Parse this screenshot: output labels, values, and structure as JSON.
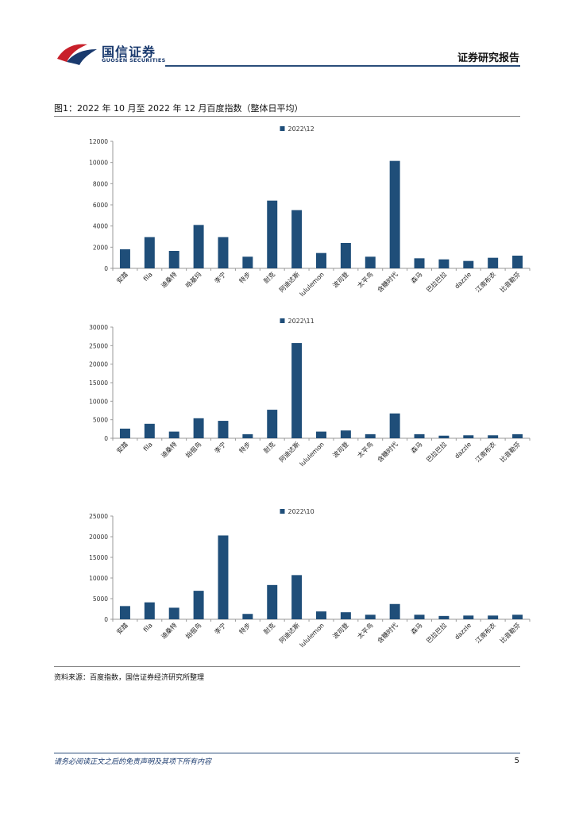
{
  "header": {
    "company_cn": "国信证券",
    "company_en": "GUOSEN SECURITIES",
    "report_type": "证券研究报告"
  },
  "figure": {
    "title": "图1：2022 年 10 月至 2022 年 12 月百度指数（整体日平均）",
    "source": "资料来源：百度指数，国信证券经济研究所整理"
  },
  "footer": {
    "disclaimer": "请务必阅读正文之后的免责声明及其项下所有内容",
    "page_number": "5"
  },
  "colors": {
    "bar": "#1f4e79",
    "axis": "#999999"
  },
  "chart_data": [
    {
      "type": "bar",
      "legend": "2022\\12",
      "categories": [
        "安踏",
        "fila",
        "迪桑特",
        "哈基玛",
        "李宁",
        "特步",
        "耐克",
        "阿迪达斯",
        "lululemon",
        "波司登",
        "太平鸟",
        "含糖时代",
        "森马",
        "巴拉巴拉",
        "dazzle",
        "江南布衣",
        "比音勒芬"
      ],
      "values": [
        1800,
        2950,
        1650,
        4100,
        2950,
        1100,
        6400,
        5500,
        1450,
        2400,
        1100,
        10150,
        950,
        850,
        700,
        1000,
        1200
      ],
      "ylim": [
        0,
        12000
      ],
      "yticks": [
        0,
        2000,
        4000,
        6000,
        8000,
        10000,
        12000
      ],
      "xlabel": "",
      "ylabel": ""
    },
    {
      "type": "bar",
      "legend": "2022\\11",
      "categories": [
        "安踏",
        "fila",
        "迪桑特",
        "始祖鸟",
        "李宁",
        "特步",
        "耐克",
        "阿迪达斯",
        "lululemon",
        "波司登",
        "太平鸟",
        "含糖时代",
        "森马",
        "巴拉巴拉",
        "dazzle",
        "江南布衣",
        "比音勒芬"
      ],
      "values": [
        2600,
        3900,
        1800,
        5400,
        4700,
        1100,
        7700,
        25700,
        1800,
        2100,
        1100,
        6700,
        1100,
        700,
        800,
        800,
        1100
      ],
      "ylim": [
        0,
        30000
      ],
      "yticks": [
        0,
        5000,
        10000,
        15000,
        20000,
        25000,
        30000
      ],
      "xlabel": "",
      "ylabel": ""
    },
    {
      "type": "bar",
      "legend": "2022\\10",
      "categories": [
        "安踏",
        "fila",
        "迪桑特",
        "始祖鸟",
        "李宁",
        "特步",
        "耐克",
        "阿迪达斯",
        "lululemon",
        "波司登",
        "太平鸟",
        "含糖时代",
        "森马",
        "巴拉巴拉",
        "dazzle",
        "江南布衣",
        "比音勒芬"
      ],
      "values": [
        3200,
        4100,
        2800,
        6900,
        20300,
        1300,
        8300,
        10700,
        1900,
        1700,
        1100,
        3700,
        1100,
        800,
        900,
        900,
        1100
      ],
      "ylim": [
        0,
        25000
      ],
      "yticks": [
        0,
        5000,
        10000,
        15000,
        20000,
        25000
      ],
      "xlabel": "",
      "ylabel": ""
    }
  ]
}
